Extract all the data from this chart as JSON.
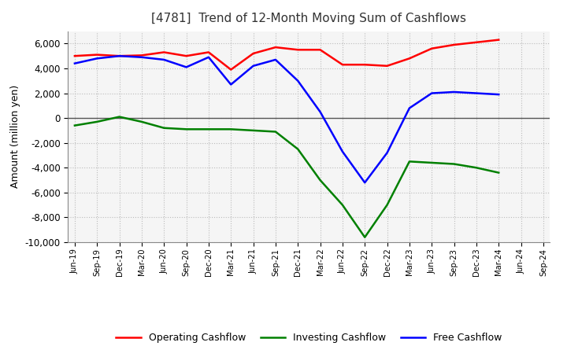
{
  "title": "[4781]  Trend of 12-Month Moving Sum of Cashflows",
  "ylabel": "Amount (million yen)",
  "ylim": [
    -10000,
    7000
  ],
  "yticks": [
    -10000,
    -8000,
    -6000,
    -4000,
    -2000,
    0,
    2000,
    4000,
    6000
  ],
  "x_labels": [
    "Jun-19",
    "Sep-19",
    "Dec-19",
    "Mar-20",
    "Jun-20",
    "Sep-20",
    "Dec-20",
    "Mar-21",
    "Jun-21",
    "Sep-21",
    "Dec-21",
    "Mar-22",
    "Jun-22",
    "Sep-22",
    "Dec-22",
    "Mar-23",
    "Jun-23",
    "Sep-23",
    "Dec-23",
    "Mar-24",
    "Jun-24",
    "Sep-24"
  ],
  "operating": [
    5000,
    5100,
    5000,
    5050,
    5300,
    5000,
    5300,
    3900,
    5200,
    5700,
    5500,
    5500,
    4300,
    4300,
    4200,
    4800,
    5600,
    5900,
    6100,
    6300,
    null,
    null
  ],
  "investing": [
    -600,
    -300,
    100,
    -300,
    -800,
    -900,
    -900,
    -900,
    -1000,
    -1100,
    -2500,
    -5000,
    -7000,
    -9600,
    -7000,
    -3500,
    -3600,
    -3700,
    -4000,
    -4400,
    null,
    null
  ],
  "free": [
    4400,
    4800,
    5000,
    4900,
    4700,
    4100,
    4900,
    2700,
    4200,
    4700,
    3000,
    500,
    -2700,
    -5200,
    -2800,
    800,
    2000,
    2100,
    2000,
    1900,
    null,
    null
  ],
  "operating_color": "#ff0000",
  "investing_color": "#008000",
  "free_color": "#0000ff",
  "bg_color": "#ffffff",
  "plot_bg_color": "#f5f5f5",
  "grid_color": "#bbbbbb",
  "legend_labels": [
    "Operating Cashflow",
    "Investing Cashflow",
    "Free Cashflow"
  ]
}
